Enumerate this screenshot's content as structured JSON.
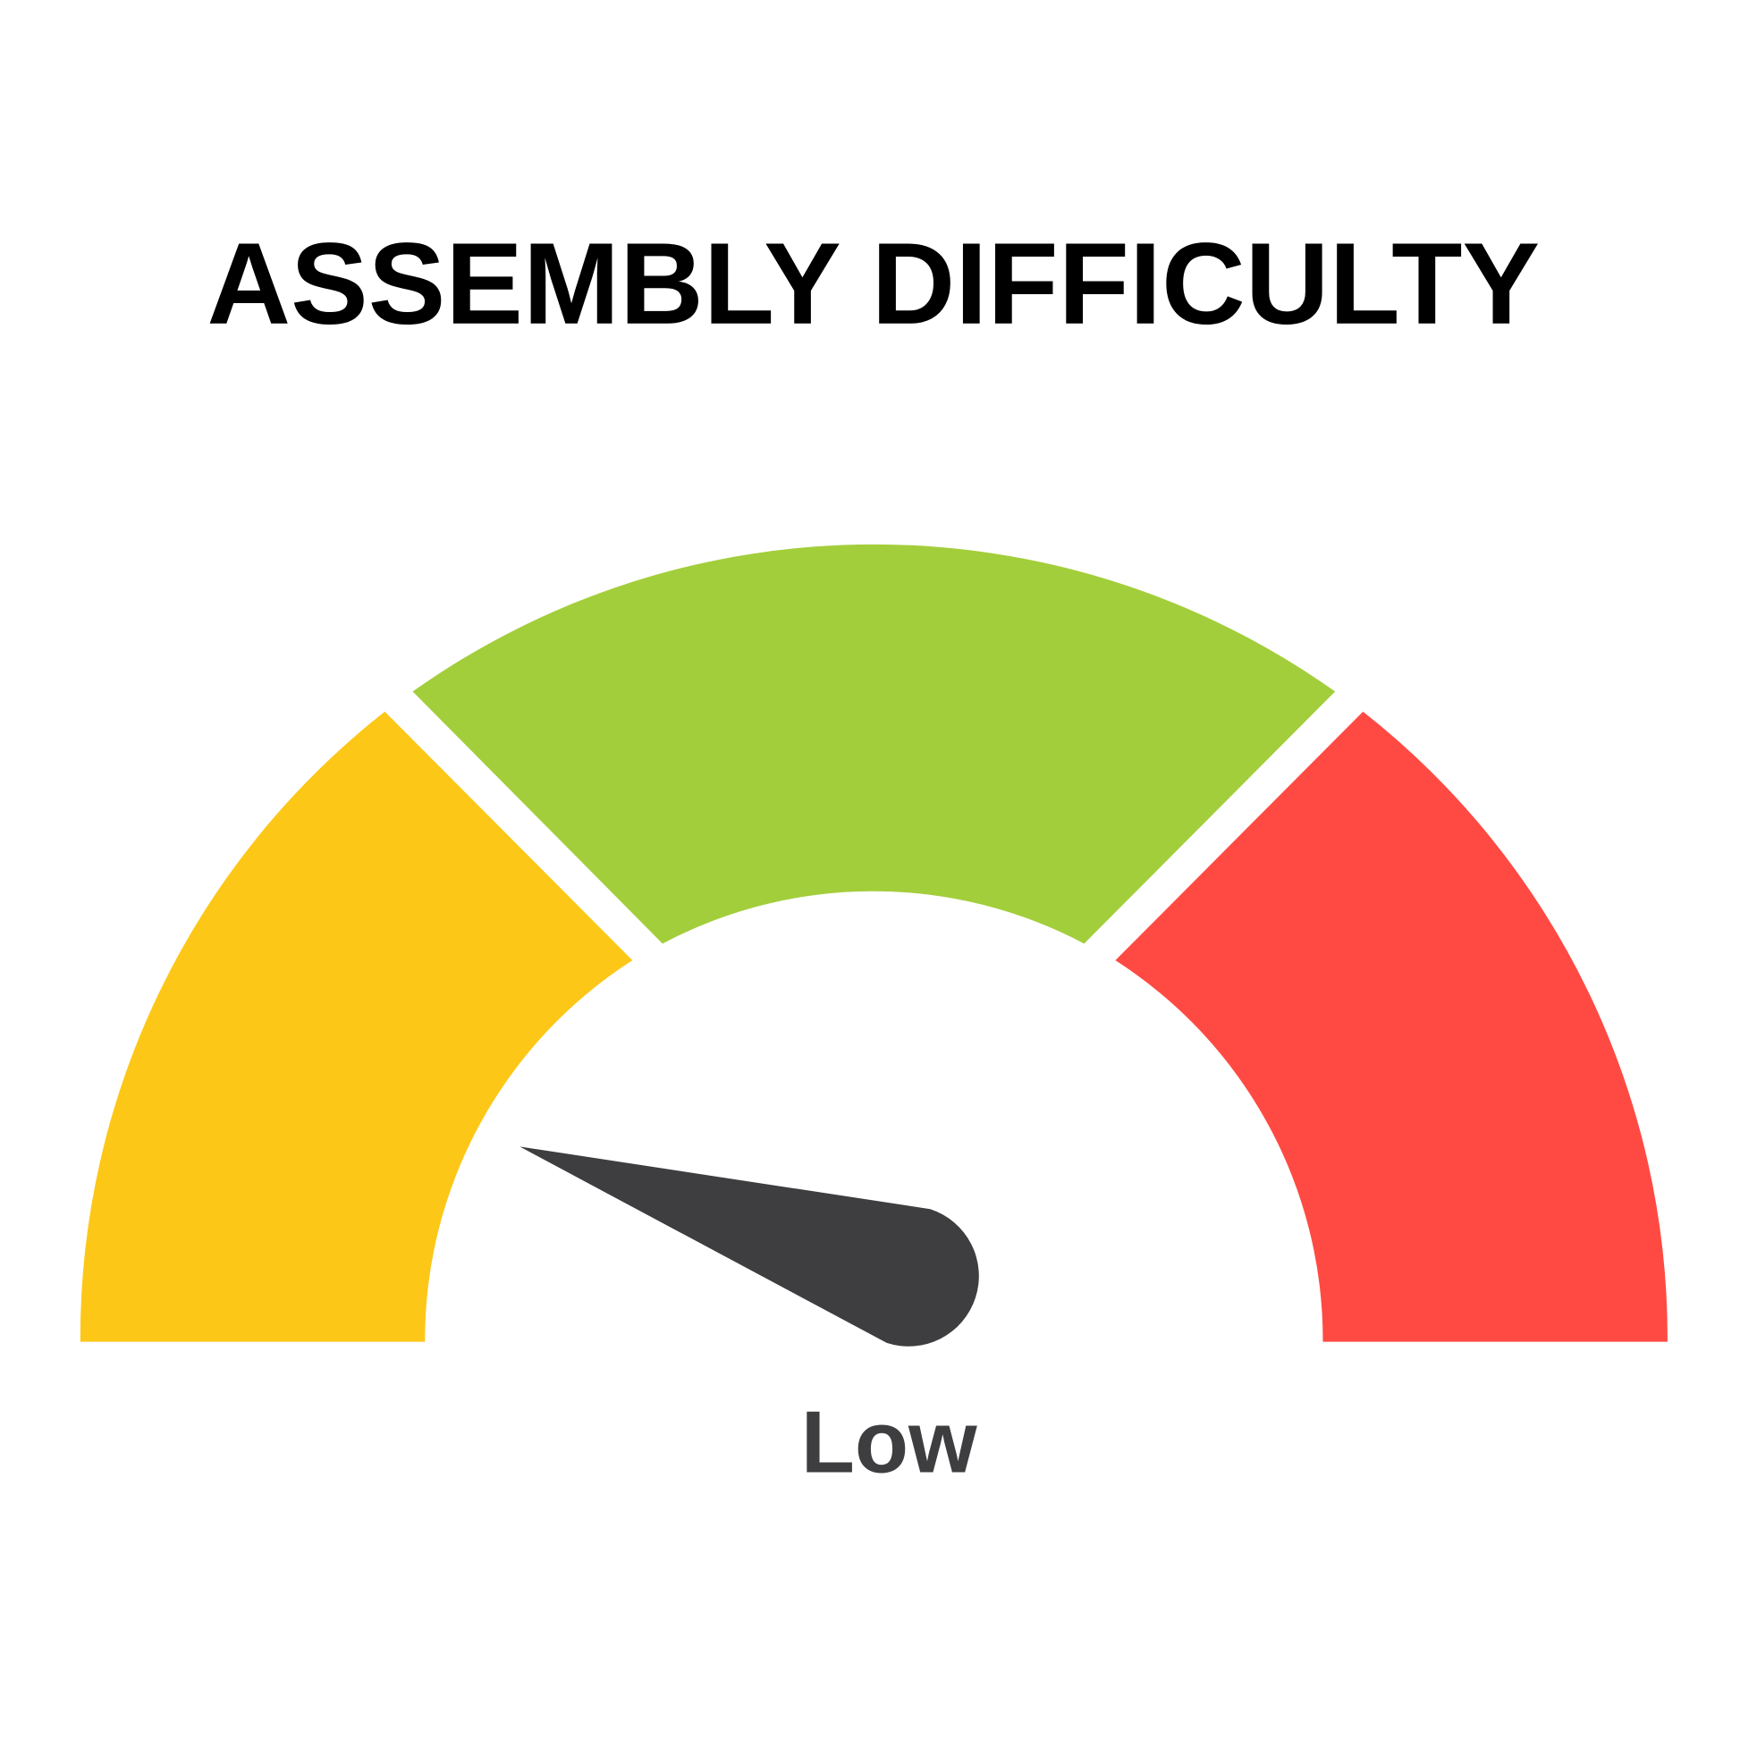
{
  "title": "ASSEMBLY DIFFICULTY",
  "gauge": {
    "reading_label": "Low",
    "needle_value_percent": 10,
    "segments": [
      {
        "level": "low",
        "color": "#FDC717"
      },
      {
        "level": "medium",
        "color": "#A3CE3B"
      },
      {
        "level": "high",
        "color": "#FF4A43"
      }
    ],
    "needle_color": "#3E3E40",
    "label_color": "#3E3E40"
  }
}
